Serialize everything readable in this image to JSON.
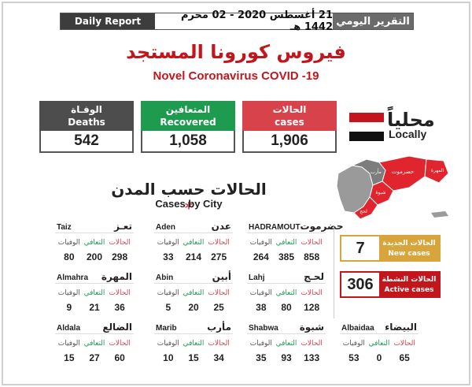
{
  "header": {
    "en_label": "Daily Report",
    "date_text": "21 أغسطس 2020   -  02 محرم  1442 هـ",
    "ar_label": "التقرير اليومي"
  },
  "title": {
    "ar": "فيروس كورونا المستجد",
    "en": "Novel Coronavirus COVID -19"
  },
  "stats": {
    "deaths": {
      "ar": "الوفـاة",
      "en": "Deaths",
      "value": "542"
    },
    "recovered": {
      "ar": "المتعافين",
      "en": "Recovered",
      "value": "1,058"
    },
    "cases": {
      "ar": "الحالات",
      "en": "cases",
      "value": "1,906"
    }
  },
  "locally": {
    "ar": "محلياً",
    "en": "Locally"
  },
  "colors": {
    "red": "#c3161c",
    "green": "#1f9b50",
    "gray": "#4d4d4d",
    "gold": "#d7a53c"
  },
  "cities_title": {
    "ar": "الحالات حسب المدن",
    "star": "*",
    "en": "Cases by City"
  },
  "labels": {
    "cases": "الحالات",
    "recovered": "التعافي",
    "deaths": "الوفيات"
  },
  "cities": [
    {
      "en": "Taiz",
      "ar": "تعـز",
      "cases": "298",
      "recovered": "200",
      "deaths": "80"
    },
    {
      "en": "Aden",
      "ar": "عدن",
      "cases": "275",
      "recovered": "214",
      "deaths": "33"
    },
    {
      "en": "HADRAMOUT",
      "ar": "حضرموت",
      "cases": "858",
      "recovered": "385",
      "deaths": "264"
    },
    {
      "en": "Almahra",
      "ar": "المهرة",
      "cases": "36",
      "recovered": "21",
      "deaths": "9"
    },
    {
      "en": "Abin",
      "ar": "أبين",
      "cases": "25",
      "recovered": "20",
      "deaths": "5"
    },
    {
      "en": "Lahj",
      "ar": "لحـج",
      "cases": "128",
      "recovered": "80",
      "deaths": "38"
    },
    {
      "en": "Aldala",
      "ar": "الضالع",
      "cases": "60",
      "recovered": "27",
      "deaths": "15"
    },
    {
      "en": "Marib",
      "ar": "مأرب",
      "cases": "34",
      "recovered": "15",
      "deaths": "10"
    },
    {
      "en": "Shabwa",
      "ar": "شبوة",
      "cases": "133",
      "recovered": "93",
      "deaths": "35"
    },
    {
      "en": "Albaidaa",
      "ar": "البيضاء",
      "cases": "65",
      "recovered": "0",
      "deaths": "53"
    }
  ],
  "new_cases": {
    "value": "7",
    "ar": "الحالات الجديدة",
    "en": "New cases"
  },
  "active_cases": {
    "value": "306",
    "ar": "الحالات النشطة",
    "en": "Active cases"
  },
  "map": {
    "labels": [
      "حضرموت",
      "المهرة",
      "شبوة",
      "مأرب",
      "لحج"
    ]
  }
}
